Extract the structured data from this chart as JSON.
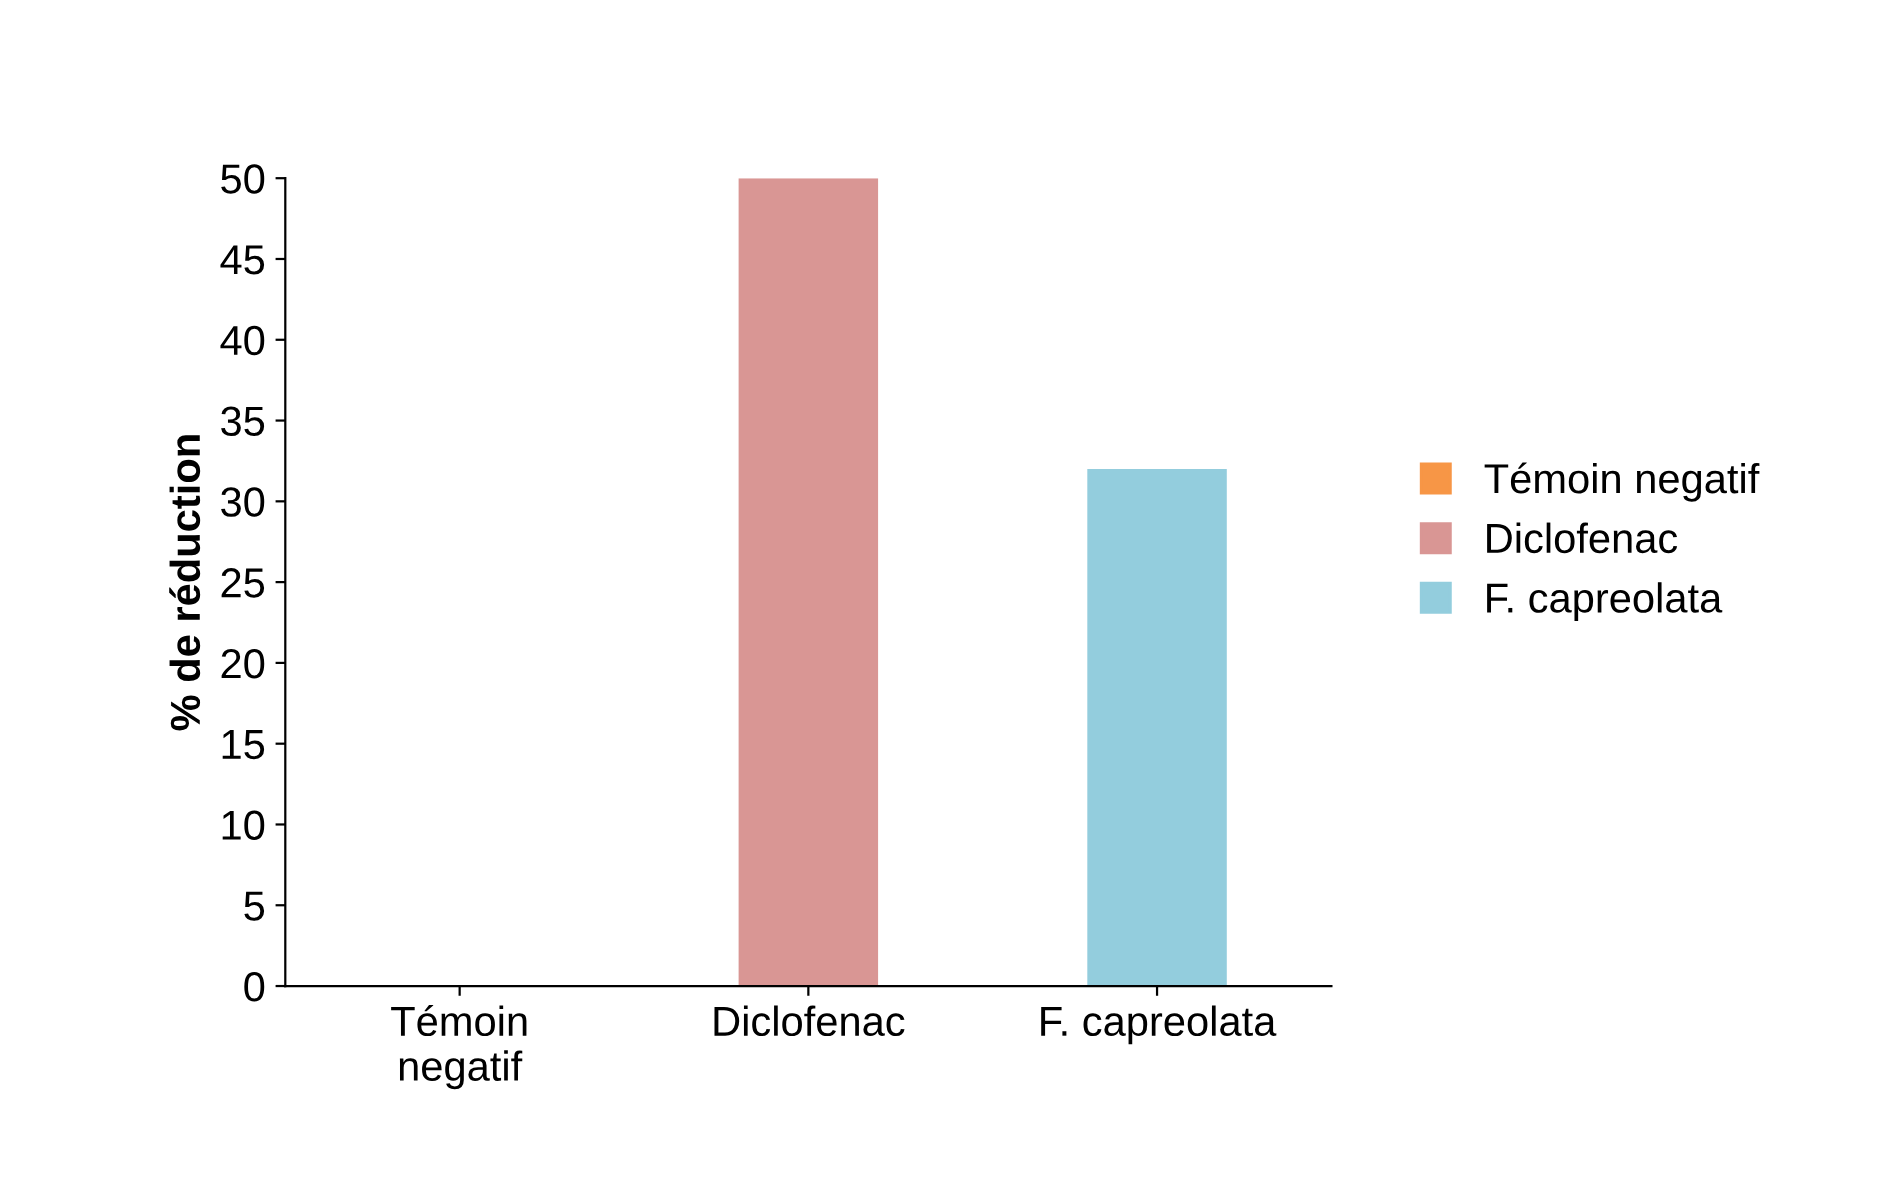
{
  "chart_data": {
    "type": "bar",
    "ylabel": "% de réduction",
    "categories": [
      "Témoin\nnegatif",
      "Diclofenac",
      "F. capreolata"
    ],
    "series": [
      {
        "name": "Témoin negatif",
        "color": "#f79646",
        "values": [
          0,
          null,
          null
        ]
      },
      {
        "name": "Diclofenac",
        "color": "#d99694",
        "values": [
          null,
          50,
          null
        ]
      },
      {
        "name": "F. capreolata",
        "color": "#93cddd",
        "values": [
          null,
          null,
          32
        ]
      }
    ],
    "ylim": [
      0,
      50
    ],
    "yticks": [
      0,
      5,
      10,
      15,
      20,
      25,
      30,
      35,
      40,
      45,
      50
    ],
    "grid": false,
    "legend": "right"
  }
}
